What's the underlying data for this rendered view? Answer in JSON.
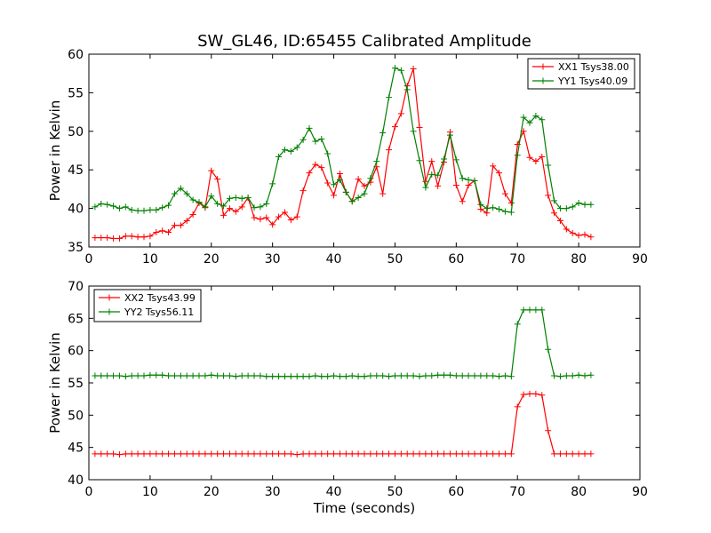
{
  "figure": {
    "title": "SW_GL46, ID:65455 Calibrated Amplitude"
  },
  "chart_data": [
    {
      "type": "line",
      "xlabel": "",
      "ylabel": "Power in Kelvin",
      "xlim": [
        0,
        90
      ],
      "ylim": [
        35,
        60
      ],
      "xticks": [
        0,
        10,
        20,
        30,
        40,
        50,
        60,
        70,
        80,
        90
      ],
      "yticks": [
        35,
        40,
        45,
        50,
        55,
        60
      ],
      "legend": "top-right",
      "grid": false,
      "series": [
        {
          "name": "XX1 Tsys38.00",
          "color": "#ff0000",
          "x": [
            1,
            2,
            3,
            4,
            5,
            6,
            7,
            8,
            9,
            10,
            11,
            12,
            13,
            14,
            15,
            16,
            17,
            18,
            19,
            20,
            21,
            22,
            23,
            24,
            25,
            26,
            27,
            28,
            29,
            30,
            31,
            32,
            33,
            34,
            35,
            36,
            37,
            38,
            39,
            40,
            41,
            42,
            43,
            44,
            45,
            46,
            47,
            48,
            49,
            50,
            51,
            52,
            53,
            54,
            55,
            56,
            57,
            58,
            59,
            60,
            61,
            62,
            63,
            64,
            65,
            66,
            67,
            68,
            69,
            70,
            71,
            72,
            73,
            74,
            75,
            76,
            77,
            78,
            79,
            80,
            81,
            82
          ],
          "y": [
            36.2,
            36.2,
            36.2,
            36.1,
            36.1,
            36.4,
            36.4,
            36.3,
            36.3,
            36.4,
            36.9,
            37.1,
            36.9,
            37.8,
            37.8,
            38.4,
            39.2,
            40.7,
            40.1,
            44.9,
            43.8,
            39.1,
            40.0,
            39.6,
            40.2,
            41.4,
            38.8,
            38.6,
            38.8,
            37.9,
            38.9,
            39.5,
            38.5,
            38.9,
            42.3,
            44.6,
            45.7,
            45.3,
            43.3,
            41.7,
            44.5,
            42.1,
            40.9,
            43.8,
            42.9,
            43.4,
            45.4,
            41.9,
            47.6,
            50.6,
            52.3,
            55.9,
            58.1,
            50.5,
            43.5,
            46.1,
            42.9,
            46.0,
            49.9,
            43.0,
            40.9,
            43.0,
            43.6,
            39.9,
            39.4,
            45.5,
            44.6,
            41.9,
            40.7,
            48.3,
            50.0,
            46.6,
            46.1,
            46.7,
            41.7,
            39.4,
            38.4,
            37.3,
            36.8,
            36.5,
            36.6,
            36.3
          ]
        },
        {
          "name": "YY1 Tsys40.09",
          "color": "#008000",
          "x": [
            1,
            2,
            3,
            4,
            5,
            6,
            7,
            8,
            9,
            10,
            11,
            12,
            13,
            14,
            15,
            16,
            17,
            18,
            19,
            20,
            21,
            22,
            23,
            24,
            25,
            26,
            27,
            28,
            29,
            30,
            31,
            32,
            33,
            34,
            35,
            36,
            37,
            38,
            39,
            40,
            41,
            42,
            43,
            44,
            45,
            46,
            47,
            48,
            49,
            50,
            51,
            52,
            53,
            54,
            55,
            56,
            57,
            58,
            59,
            60,
            61,
            62,
            63,
            64,
            65,
            66,
            67,
            68,
            69,
            70,
            71,
            72,
            73,
            74,
            75,
            76,
            77,
            78,
            79,
            80,
            81,
            82
          ],
          "y": [
            40.2,
            40.6,
            40.5,
            40.3,
            40.0,
            40.2,
            39.8,
            39.7,
            39.7,
            39.8,
            39.8,
            40.1,
            40.4,
            41.9,
            42.6,
            41.9,
            41.1,
            40.8,
            40.2,
            41.6,
            40.6,
            40.3,
            41.3,
            41.4,
            41.3,
            41.4,
            40.1,
            40.2,
            40.6,
            43.2,
            46.7,
            47.6,
            47.4,
            47.9,
            48.9,
            50.4,
            48.7,
            49.0,
            47.1,
            43.1,
            43.7,
            42.1,
            40.9,
            41.4,
            41.9,
            43.9,
            46.1,
            49.8,
            54.4,
            58.2,
            57.9,
            55.4,
            50.0,
            46.2,
            42.7,
            44.4,
            44.3,
            46.4,
            49.5,
            46.3,
            43.9,
            43.7,
            43.6,
            40.5,
            40.0,
            40.1,
            39.9,
            39.6,
            39.5,
            46.9,
            51.8,
            51.1,
            52.0,
            51.5,
            45.6,
            41.0,
            40.0,
            40.0,
            40.2,
            40.7,
            40.5,
            40.5
          ]
        }
      ]
    },
    {
      "type": "line",
      "xlabel": "Time (seconds)",
      "ylabel": "Power in Kelvin",
      "xlim": [
        0,
        90
      ],
      "ylim": [
        40,
        70
      ],
      "xticks": [
        0,
        10,
        20,
        30,
        40,
        50,
        60,
        70,
        80,
        90
      ],
      "yticks": [
        40,
        45,
        50,
        55,
        60,
        65,
        70
      ],
      "legend": "top-left",
      "grid": false,
      "series": [
        {
          "name": "XX2 Tsys43.99",
          "color": "#ff0000",
          "x": [
            1,
            2,
            3,
            4,
            5,
            6,
            7,
            8,
            9,
            10,
            11,
            12,
            13,
            14,
            15,
            16,
            17,
            18,
            19,
            20,
            21,
            22,
            23,
            24,
            25,
            26,
            27,
            28,
            29,
            30,
            31,
            32,
            33,
            34,
            35,
            36,
            37,
            38,
            39,
            40,
            41,
            42,
            43,
            44,
            45,
            46,
            47,
            48,
            49,
            50,
            51,
            52,
            53,
            54,
            55,
            56,
            57,
            58,
            59,
            60,
            61,
            62,
            63,
            64,
            65,
            66,
            67,
            68,
            69,
            70,
            71,
            72,
            73,
            74,
            75,
            76,
            77,
            78,
            79,
            80,
            81,
            82
          ],
          "y": [
            44.0,
            44.0,
            44.0,
            44.0,
            43.9,
            44.0,
            44.0,
            44.0,
            44.0,
            44.0,
            44.0,
            44.0,
            44.0,
            44.0,
            44.0,
            44.0,
            44.0,
            44.0,
            44.0,
            44.0,
            44.0,
            44.0,
            44.0,
            44.0,
            44.0,
            44.0,
            44.0,
            44.0,
            44.0,
            44.0,
            44.0,
            44.0,
            44.0,
            43.9,
            44.0,
            44.0,
            44.0,
            44.0,
            44.0,
            44.0,
            44.0,
            44.0,
            44.0,
            44.0,
            44.0,
            44.0,
            44.0,
            44.0,
            44.0,
            44.0,
            44.0,
            44.0,
            44.0,
            44.0,
            44.0,
            44.0,
            44.0,
            44.0,
            44.0,
            44.0,
            44.0,
            44.0,
            44.0,
            44.0,
            44.0,
            44.0,
            44.0,
            44.0,
            44.0,
            51.3,
            53.2,
            53.3,
            53.3,
            53.1,
            47.6,
            44.0,
            44.0,
            44.0,
            44.0,
            44.0,
            44.0,
            44.0
          ]
        },
        {
          "name": "YY2 Tsys56.11",
          "color": "#008000",
          "x": [
            1,
            2,
            3,
            4,
            5,
            6,
            7,
            8,
            9,
            10,
            11,
            12,
            13,
            14,
            15,
            16,
            17,
            18,
            19,
            20,
            21,
            22,
            23,
            24,
            25,
            26,
            27,
            28,
            29,
            30,
            31,
            32,
            33,
            34,
            35,
            36,
            37,
            38,
            39,
            40,
            41,
            42,
            43,
            44,
            45,
            46,
            47,
            48,
            49,
            50,
            51,
            52,
            53,
            54,
            55,
            56,
            57,
            58,
            59,
            60,
            61,
            62,
            63,
            64,
            65,
            66,
            67,
            68,
            69,
            70,
            71,
            72,
            73,
            74,
            75,
            76,
            77,
            78,
            79,
            80,
            81,
            82
          ],
          "y": [
            56.1,
            56.1,
            56.1,
            56.1,
            56.1,
            56.0,
            56.1,
            56.1,
            56.1,
            56.2,
            56.2,
            56.2,
            56.1,
            56.1,
            56.1,
            56.1,
            56.1,
            56.1,
            56.1,
            56.2,
            56.1,
            56.1,
            56.1,
            56.0,
            56.1,
            56.1,
            56.1,
            56.1,
            56.0,
            56.0,
            56.0,
            56.0,
            56.0,
            56.0,
            56.0,
            56.0,
            56.1,
            56.0,
            56.0,
            56.1,
            56.0,
            56.0,
            56.1,
            56.0,
            56.0,
            56.1,
            56.1,
            56.1,
            56.0,
            56.1,
            56.1,
            56.1,
            56.1,
            56.0,
            56.1,
            56.1,
            56.2,
            56.2,
            56.2,
            56.1,
            56.1,
            56.1,
            56.1,
            56.1,
            56.1,
            56.1,
            56.0,
            56.1,
            56.0,
            64.1,
            66.3,
            66.3,
            66.3,
            66.3,
            60.2,
            56.1,
            56.0,
            56.1,
            56.1,
            56.2,
            56.1,
            56.2
          ]
        }
      ]
    }
  ]
}
